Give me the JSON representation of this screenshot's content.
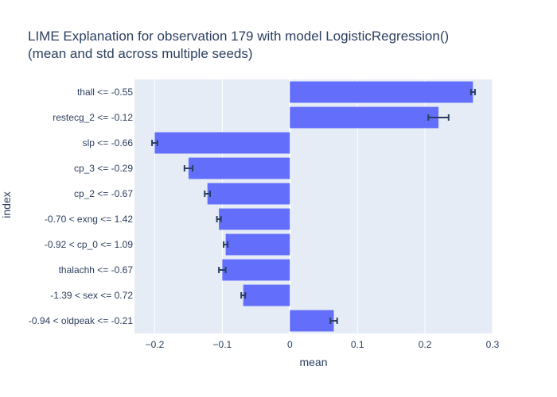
{
  "chart_data": {
    "type": "bar",
    "orientation": "horizontal",
    "title_line1": "LIME Explanation for observation 179 with model LogisticRegression()",
    "title_line2": "(mean and std across multiple seeds)",
    "xlabel": "mean",
    "ylabel": "index",
    "xlim": [
      -0.23,
      0.3
    ],
    "xticks": [
      -0.2,
      -0.1,
      0,
      0.1,
      0.2,
      0.3
    ],
    "xtick_labels": [
      "−0.2",
      "−0.1",
      "0",
      "0.1",
      "0.2",
      "0.3"
    ],
    "grid": true,
    "bar_color": "#636efa",
    "error_color": "#2a3f5f",
    "plot_bg": "#e5ecf6",
    "categories": [
      "thall <= -0.55",
      "restecg_2 <= -0.12",
      "slp <= -0.66",
      "cp_3 <= -0.29",
      "cp_2 <= -0.67",
      "-0.70 < exng <= 1.42",
      "-0.92 < cp_0 <= 1.09",
      "thalachh <= -0.67",
      "-1.39 < sex <= 0.72",
      "-0.94 < oldpeak <= -0.21"
    ],
    "values": [
      0.271,
      0.22,
      -0.2,
      -0.15,
      -0.122,
      -0.105,
      -0.095,
      -0.1,
      -0.069,
      0.065
    ],
    "errors": [
      0.003,
      0.015,
      0.004,
      0.006,
      0.004,
      0.003,
      0.003,
      0.005,
      0.003,
      0.005
    ]
  }
}
